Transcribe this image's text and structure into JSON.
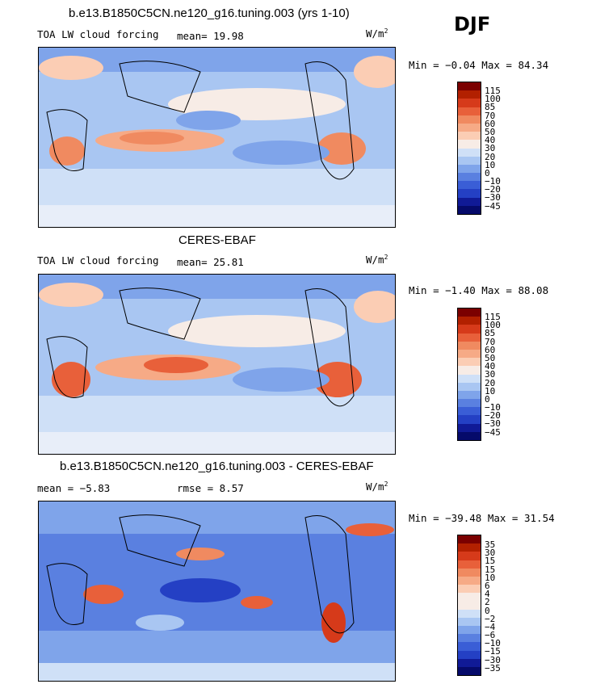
{
  "season": "DJF",
  "panels": [
    {
      "title": "b.e13.B1850C5CN.ne120_g16.tuning.003 (yrs 1-10)",
      "left_label": "TOA LW cloud forcing",
      "middle_label": "mean=  19.98",
      "units": "W/m",
      "units_sup": "2",
      "minmax": "Min =  −0.04 Max =  84.34",
      "colorbar_ticks": [
        "115",
        "100",
        "85",
        "70",
        "60",
        "50",
        "40",
        "30",
        "20",
        "10",
        "0",
        "−10",
        "−20",
        "−30",
        "−45"
      ]
    },
    {
      "title": "CERES-EBAF",
      "left_label": "TOA LW cloud forcing",
      "middle_label": "mean=  25.81",
      "units": "W/m",
      "units_sup": "2",
      "minmax": "Min =  −1.40 Max =  88.08",
      "colorbar_ticks": [
        "115",
        "100",
        "85",
        "70",
        "60",
        "50",
        "40",
        "30",
        "20",
        "10",
        "0",
        "−10",
        "−20",
        "−30",
        "−45"
      ]
    },
    {
      "title": "b.e13.B1850C5CN.ne120_g16.tuning.003 - CERES-EBAF",
      "left_label": "mean =   −5.83",
      "middle_label": "rmse =   8.57",
      "units": "W/m",
      "units_sup": "2",
      "minmax": "Min = −39.48 Max =  31.54",
      "colorbar_ticks": [
        "35",
        "30",
        "15",
        "15",
        "10",
        "6",
        "4",
        "2",
        "0",
        "−2",
        "−4",
        "−6",
        "−10",
        "−15",
        "−30",
        "−35"
      ]
    }
  ],
  "colors": {
    "abs_scale": [
      "#7b0000",
      "#b22000",
      "#d63a1a",
      "#e8603a",
      "#f08a60",
      "#f6aa86",
      "#fbcdb4",
      "#f7ece6",
      "#cfe0f7",
      "#a9c6f2",
      "#7fa4ea",
      "#5a80e0",
      "#3a5ed6",
      "#2440c4",
      "#101a96",
      "#050a6a"
    ],
    "diff_scale": [
      "#7b0000",
      "#b22000",
      "#d63a1a",
      "#e8603a",
      "#f08a60",
      "#f6aa86",
      "#fbcdb4",
      "#f7ece6",
      "#f7ece6",
      "#cfe0f7",
      "#a9c6f2",
      "#7fa4ea",
      "#5a80e0",
      "#3a5ed6",
      "#2440c4",
      "#101a96",
      "#050a6a"
    ]
  }
}
